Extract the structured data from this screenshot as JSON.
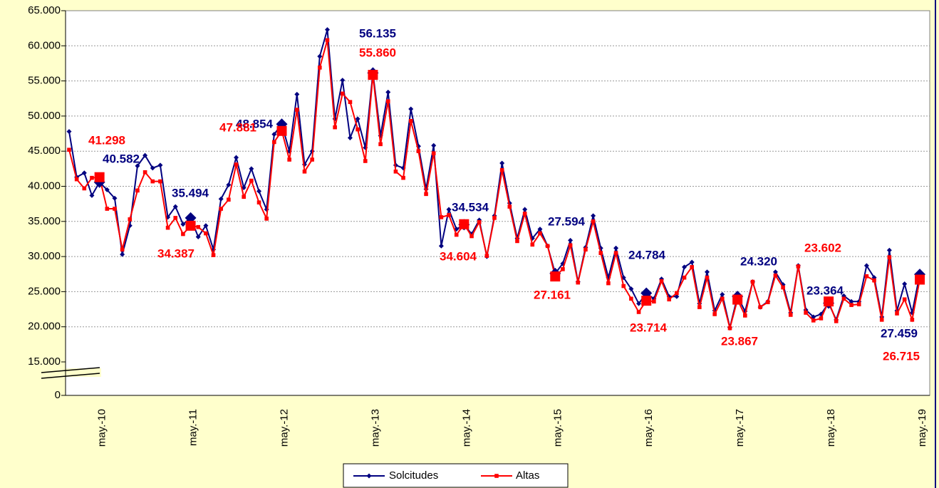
{
  "chart_data": {
    "type": "line",
    "categories": [
      null,
      null,
      null,
      null,
      "may.-10",
      null,
      null,
      null,
      null,
      null,
      null,
      null,
      null,
      null,
      null,
      null,
      "may.-11",
      null,
      null,
      null,
      null,
      null,
      null,
      null,
      null,
      null,
      null,
      null,
      "may.-12",
      null,
      null,
      null,
      null,
      null,
      null,
      null,
      null,
      null,
      null,
      null,
      "may.-13",
      null,
      null,
      null,
      null,
      null,
      null,
      null,
      null,
      null,
      null,
      null,
      "may.-14",
      null,
      null,
      null,
      null,
      null,
      null,
      null,
      null,
      null,
      null,
      null,
      "may.-15",
      null,
      null,
      null,
      null,
      null,
      null,
      null,
      null,
      null,
      null,
      null,
      "may.-16",
      null,
      null,
      null,
      null,
      null,
      null,
      null,
      null,
      null,
      null,
      null,
      "may.-17",
      null,
      null,
      null,
      null,
      null,
      null,
      null,
      null,
      null,
      null,
      null,
      "may.-18",
      null,
      null,
      null,
      null,
      null,
      null,
      null,
      null,
      null,
      null,
      null,
      "may.-19"
    ],
    "series": [
      {
        "name": "Solcitudes",
        "color": "#000080",
        "values": [
          47800,
          41300,
          41900,
          38700,
          40582,
          39500,
          38300,
          30300,
          34400,
          42900,
          44400,
          42600,
          43000,
          35600,
          37100,
          34600,
          35494,
          32800,
          34400,
          31000,
          38200,
          40200,
          44100,
          39800,
          42500,
          39300,
          36700,
          47400,
          48854,
          45000,
          53100,
          43100,
          45000,
          58500,
          62300,
          49600,
          55100,
          46900,
          49600,
          45500,
          56135,
          47200,
          53400,
          43000,
          42600,
          51000,
          45700,
          39600,
          45800,
          31500,
          36700,
          33900,
          34534,
          33200,
          35200,
          30000,
          35800,
          43300,
          37600,
          32600,
          36700,
          32600,
          33900,
          31500,
          27594,
          29000,
          32300,
          26400,
          31300,
          35800,
          31200,
          27000,
          31200,
          27000,
          25400,
          23300,
          24784,
          24000,
          26800,
          24300,
          24300,
          28500,
          29200,
          23300,
          27800,
          22300,
          24600,
          19900,
          24320,
          22200,
          26400,
          22800,
          23600,
          27800,
          26000,
          22000,
          28700,
          22400,
          21400,
          21800,
          23364,
          21000,
          24400,
          23600,
          23600,
          28700,
          27000,
          21400,
          30900,
          22300,
          26100,
          22000,
          27459
        ],
        "value_labels": [
          null,
          null,
          null,
          null,
          "40.582",
          null,
          null,
          null,
          null,
          null,
          null,
          null,
          null,
          null,
          null,
          null,
          "35.494",
          null,
          null,
          null,
          null,
          null,
          null,
          null,
          null,
          null,
          null,
          null,
          "48.854",
          null,
          null,
          null,
          null,
          null,
          null,
          null,
          null,
          null,
          null,
          null,
          "56.135",
          null,
          null,
          null,
          null,
          null,
          null,
          null,
          null,
          null,
          null,
          null,
          "34.534",
          null,
          null,
          null,
          null,
          null,
          null,
          null,
          null,
          null,
          null,
          null,
          "27.594",
          null,
          null,
          null,
          null,
          null,
          null,
          null,
          null,
          null,
          null,
          null,
          "24.784",
          null,
          null,
          null,
          null,
          null,
          null,
          null,
          null,
          null,
          null,
          null,
          "24.320",
          null,
          null,
          null,
          null,
          null,
          null,
          null,
          null,
          null,
          null,
          null,
          "23.364",
          null,
          null,
          null,
          null,
          null,
          null,
          null,
          null,
          null,
          null,
          null,
          "27.459"
        ]
      },
      {
        "name": "Altas",
        "color": "#ff0000",
        "values": [
          45200,
          41000,
          39700,
          41200,
          41298,
          36800,
          36800,
          31000,
          35300,
          39400,
          42000,
          40700,
          40700,
          34100,
          35500,
          33200,
          34387,
          34200,
          33300,
          30200,
          36800,
          38100,
          43100,
          38500,
          40800,
          37700,
          35400,
          46300,
          47881,
          43800,
          50900,
          42100,
          43800,
          56900,
          60800,
          48400,
          53200,
          52000,
          48100,
          43600,
          55860,
          46000,
          52100,
          42100,
          41200,
          49300,
          45000,
          38900,
          44700,
          35600,
          35900,
          33100,
          34604,
          32900,
          34900,
          30100,
          35500,
          42300,
          37100,
          32200,
          36100,
          31700,
          33300,
          31500,
          27161,
          28200,
          31600,
          26300,
          31000,
          35000,
          30500,
          26200,
          30500,
          25800,
          24000,
          22100,
          23714,
          23600,
          26500,
          23900,
          24800,
          27000,
          28500,
          22800,
          27000,
          21800,
          24000,
          19800,
          23867,
          21600,
          26400,
          22800,
          23500,
          27300,
          25600,
          21700,
          28600,
          22000,
          20900,
          21200,
          23602,
          20800,
          24000,
          23100,
          23200,
          27200,
          26600,
          21000,
          29900,
          21900,
          23900,
          21000,
          26715
        ],
        "value_labels": [
          null,
          null,
          null,
          null,
          "41.298",
          null,
          null,
          null,
          null,
          null,
          null,
          null,
          null,
          null,
          null,
          null,
          "34.387",
          null,
          null,
          null,
          null,
          null,
          null,
          null,
          null,
          null,
          null,
          null,
          "47.881",
          null,
          null,
          null,
          null,
          null,
          null,
          null,
          null,
          null,
          null,
          null,
          "55.860",
          null,
          null,
          null,
          null,
          null,
          null,
          null,
          null,
          null,
          null,
          null,
          "34.604",
          null,
          null,
          null,
          null,
          null,
          null,
          null,
          null,
          null,
          null,
          null,
          "27.161",
          null,
          null,
          null,
          null,
          null,
          null,
          null,
          null,
          null,
          null,
          null,
          "23.714",
          null,
          null,
          null,
          null,
          null,
          null,
          null,
          null,
          null,
          null,
          null,
          "23.867",
          null,
          null,
          null,
          null,
          null,
          null,
          null,
          null,
          null,
          null,
          null,
          "23.602",
          null,
          null,
          null,
          null,
          null,
          null,
          null,
          null,
          null,
          null,
          null,
          "26.715"
        ]
      }
    ],
    "ylim": [
      0,
      65000
    ],
    "ybreak": [
      0,
      15000
    ],
    "yticks": [
      0,
      {
        "value": 15000,
        "label": "15.000"
      },
      {
        "value": 20000,
        "label": "20.000"
      },
      {
        "value": 25000,
        "label": "25.000"
      },
      {
        "value": 30000,
        "label": "30.000"
      },
      {
        "value": 35000,
        "label": "35.000"
      },
      {
        "value": 40000,
        "label": "40.000"
      },
      {
        "value": 45000,
        "label": "45.000"
      },
      {
        "value": 50000,
        "label": "50.000"
      },
      {
        "value": 55000,
        "label": "55.000"
      },
      {
        "value": 60000,
        "label": "60.000"
      },
      {
        "value": 65000,
        "label": "65.000"
      }
    ],
    "grid": true,
    "legend": "bottom"
  }
}
